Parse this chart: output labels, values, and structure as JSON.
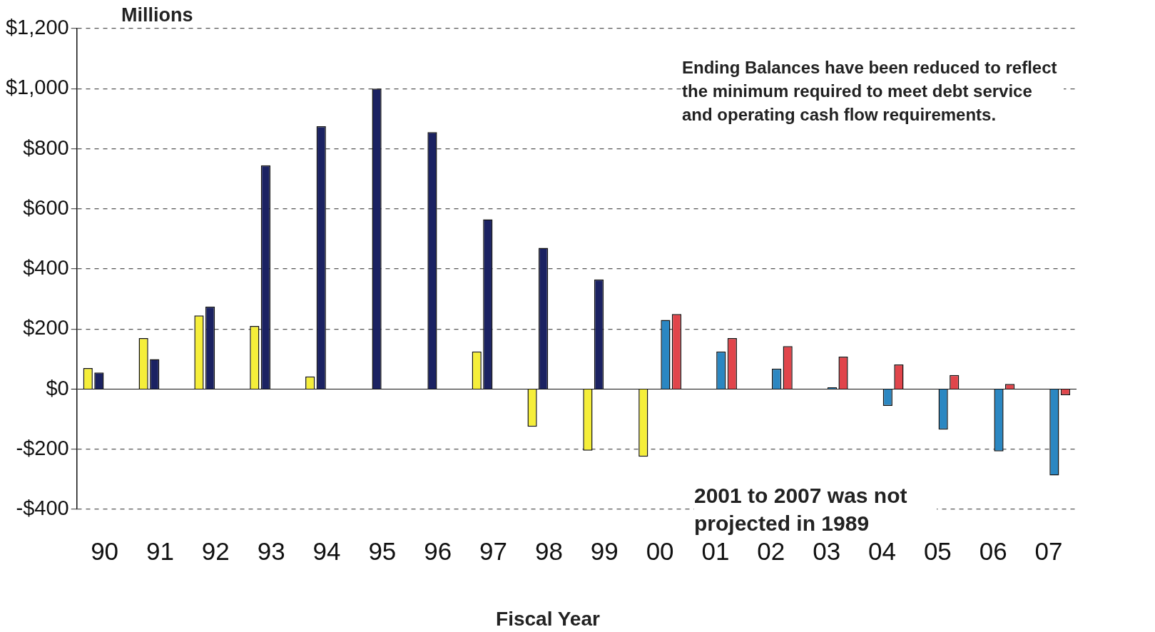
{
  "chart_data": {
    "type": "bar",
    "ylabel": "Millions",
    "xlabel": "Fiscal Year",
    "categories": [
      "90",
      "91",
      "92",
      "93",
      "94",
      "95",
      "96",
      "97",
      "98",
      "99",
      "00",
      "01",
      "02",
      "03",
      "04",
      "05",
      "06",
      "07"
    ],
    "series": [
      {
        "color": "#f5ee3a",
        "values": [
          70,
          170,
          245,
          210,
          42,
          null,
          null,
          125,
          -125,
          -205,
          -225,
          null,
          null,
          null,
          null,
          null,
          null,
          null
        ]
      },
      {
        "color": "#1b2262",
        "values": [
          55,
          100,
          275,
          745,
          875,
          1000,
          855,
          565,
          470,
          365,
          null,
          null,
          null,
          null,
          null,
          null,
          null,
          null
        ]
      },
      {
        "color": "#2b87c2",
        "values": [
          null,
          null,
          null,
          null,
          null,
          null,
          null,
          null,
          null,
          null,
          230,
          125,
          68,
          6,
          -56,
          -135,
          -207,
          -287
        ]
      },
      {
        "color": "#e1454b",
        "values": [
          null,
          null,
          null,
          null,
          null,
          null,
          null,
          null,
          null,
          null,
          250,
          170,
          143,
          108,
          82,
          47,
          17,
          -20
        ]
      }
    ],
    "ylim": [
      -400,
      1200
    ],
    "yticks": [
      {
        "value": -400,
        "label": "-$400"
      },
      {
        "value": -200,
        "label": "-$200"
      },
      {
        "value": 0,
        "label": "$0"
      },
      {
        "value": 200,
        "label": "$200"
      },
      {
        "value": 400,
        "label": "$400"
      },
      {
        "value": 600,
        "label": "$600"
      },
      {
        "value": 800,
        "label": "$800"
      },
      {
        "value": 1000,
        "label": "$1,000"
      },
      {
        "value": 1200,
        "label": "$1,200"
      }
    ],
    "grid": "y",
    "annotations": [
      "Ending Balances have been reduced to reflect the minimum required to meet debt service and operating cash flow requirements.",
      "2001 to 2007 was not projected in 1989"
    ]
  }
}
